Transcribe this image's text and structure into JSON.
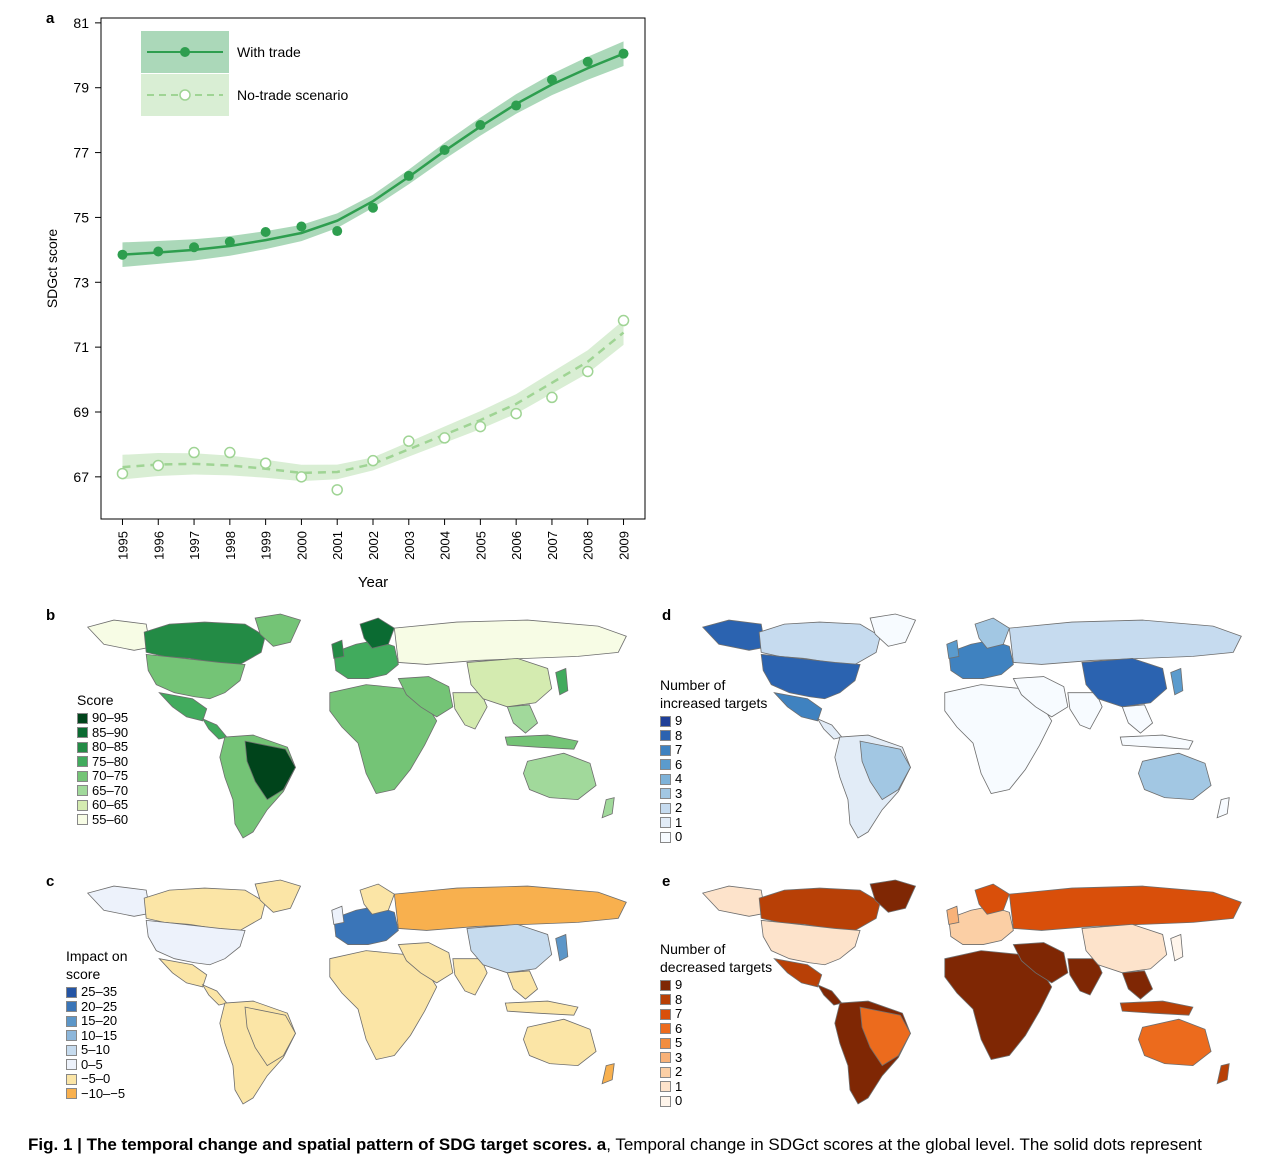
{
  "panel_a": {
    "letter": "a",
    "chart_data": {
      "type": "line",
      "x": [
        1995,
        1996,
        1997,
        1998,
        1999,
        2000,
        2001,
        2002,
        2003,
        2004,
        2005,
        2006,
        2007,
        2008,
        2009
      ],
      "series": [
        {
          "name": "With trade",
          "values": [
            73.85,
            73.95,
            74.08,
            74.25,
            74.55,
            74.72,
            74.58,
            75.3,
            76.28,
            77.08,
            77.85,
            78.45,
            79.25,
            79.8,
            80.05
          ],
          "fit": [
            73.85,
            73.92,
            74.0,
            74.12,
            74.3,
            74.52,
            74.9,
            75.5,
            76.25,
            77.05,
            77.8,
            78.5,
            79.1,
            79.6,
            80.05
          ],
          "color": "#2e9e4f",
          "style": "solid",
          "marker": "filled"
        },
        {
          "name": "No-trade scenario",
          "values": [
            67.1,
            67.35,
            67.75,
            67.75,
            67.42,
            67.0,
            66.6,
            67.5,
            68.1,
            68.2,
            68.55,
            68.95,
            69.45,
            70.25,
            71.82
          ],
          "fit": [
            67.3,
            67.38,
            67.4,
            67.35,
            67.25,
            67.12,
            67.15,
            67.4,
            67.85,
            68.3,
            68.75,
            69.25,
            69.9,
            70.55,
            71.45
          ],
          "color": "#9fd494",
          "style": "dashed",
          "marker": "open"
        }
      ],
      "title": "",
      "xlabel": "Year",
      "ylabel": "SDGct score",
      "ylim": [
        65.7,
        81
      ],
      "yticks": [
        67,
        69,
        71,
        73,
        75,
        77,
        79,
        81
      ],
      "legend_position": "top-left"
    }
  },
  "panel_b": {
    "letter": "b",
    "legend_title": "Score",
    "legend": [
      {
        "label": "90–95",
        "color": "#00441b"
      },
      {
        "label": "85–90",
        "color": "#0b6b32"
      },
      {
        "label": "80–85",
        "color": "#238b45"
      },
      {
        "label": "75–80",
        "color": "#41ab5d"
      },
      {
        "label": "70–75",
        "color": "#74c476"
      },
      {
        "label": "65–70",
        "color": "#a1d99b"
      },
      {
        "label": "60–65",
        "color": "#d4ebb0"
      },
      {
        "label": "55–60",
        "color": "#f7fce5"
      }
    ]
  },
  "panel_c": {
    "letter": "c",
    "legend_title_line1": "Impact on",
    "legend_title_line2": "score",
    "legend": [
      {
        "label": "25–35",
        "color": "#2454a4"
      },
      {
        "label": "20–25",
        "color": "#3a75b8"
      },
      {
        "label": "15–20",
        "color": "#5c96c8"
      },
      {
        "label": "10–15",
        "color": "#8cb6da"
      },
      {
        "label": "5–10",
        "color": "#c6dbee"
      },
      {
        "label": "0–5",
        "color": "#edf2fb"
      },
      {
        "label": "−5–0",
        "color": "#fbe5a6"
      },
      {
        "label": "−10–−5",
        "color": "#f8b04e"
      }
    ]
  },
  "panel_d": {
    "letter": "d",
    "legend_title_line1": "Number of",
    "legend_title_line2": "increased targets",
    "legend": [
      {
        "label": "9",
        "color": "#1f3f98"
      },
      {
        "label": "8",
        "color": "#2b63b0"
      },
      {
        "label": "7",
        "color": "#3f82c0"
      },
      {
        "label": "6",
        "color": "#5b9bcd"
      },
      {
        "label": "4",
        "color": "#7eb2d8"
      },
      {
        "label": "3",
        "color": "#a2c7e3"
      },
      {
        "label": "2",
        "color": "#c6dbef"
      },
      {
        "label": "1",
        "color": "#e2ecf7"
      },
      {
        "label": "0",
        "color": "#f7fbff"
      }
    ]
  },
  "panel_e": {
    "letter": "e",
    "legend_title_line1": "Number of",
    "legend_title_line2": "decreased targets",
    "legend": [
      {
        "label": "9",
        "color": "#7f2704"
      },
      {
        "label": "8",
        "color": "#b84006"
      },
      {
        "label": "7",
        "color": "#d94f0a"
      },
      {
        "label": "6",
        "color": "#ec6b1d"
      },
      {
        "label": "5",
        "color": "#f28d3e"
      },
      {
        "label": "3",
        "color": "#f8b279"
      },
      {
        "label": "2",
        "color": "#fbcfa5"
      },
      {
        "label": "1",
        "color": "#fde3cb"
      },
      {
        "label": "0",
        "color": "#fff5eb"
      }
    ]
  },
  "caption": {
    "bold": "Fig. 1 | The temporal change and spatial pattern of SDG target scores.",
    "bold_a": "a",
    "rest": ", Temporal change in SDGct scores at the global level. The solid dots represent"
  }
}
